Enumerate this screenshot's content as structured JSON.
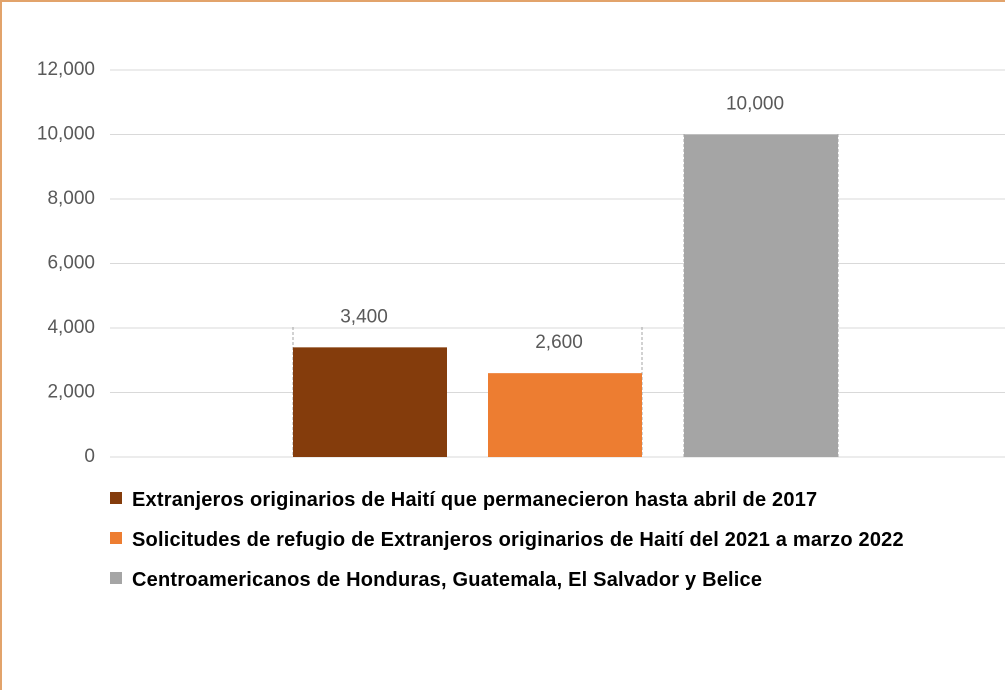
{
  "chart_data": {
    "type": "bar",
    "categories": [
      null
    ],
    "series": [
      {
        "name": "Extranjeros originarios de Haití  que permanecieron hasta abril de 2017",
        "color": "#843c0c",
        "values": [
          3400
        ],
        "value_labels": [
          "3,400"
        ]
      },
      {
        "name": "Solicitudes de refugio de Extranjeros originarios de Haití  del 2021 a marzo  2022",
        "color": "#ed7d31",
        "values": [
          2600
        ],
        "value_labels": [
          "2,600"
        ]
      },
      {
        "name": "Centroamericanos de Honduras, Guatemala, El Salvador y Belice",
        "color": "#a5a5a5",
        "values": [
          10000
        ],
        "value_labels": [
          "10,000"
        ]
      }
    ],
    "ylim": [
      0,
      12000
    ],
    "yticks": [
      0,
      {
        "value": 2000,
        "label": "2,000"
      },
      {
        "value": 4000,
        "label": "4,000"
      },
      {
        "value": 6000,
        "label": "6,000"
      },
      {
        "value": 8000,
        "label": "8,000"
      },
      {
        "value": 10000,
        "label": "10,000"
      },
      {
        "value": 12000,
        "label": "12,000"
      }
    ],
    "grid": true,
    "legend": "bottom"
  }
}
